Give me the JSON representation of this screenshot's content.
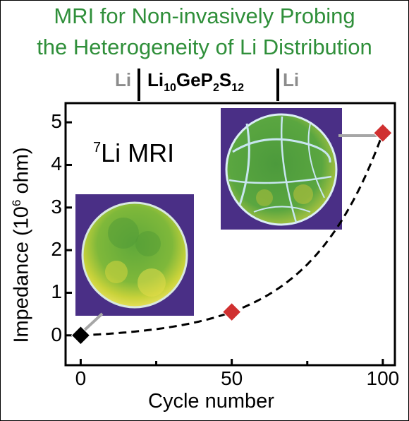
{
  "title_line1": "MRI for Non-invasively Probing",
  "title_line2": "the Heterogeneity of Li Distribution",
  "cell": {
    "left": "Li",
    "electrolyte_prefix": "Li",
    "sub1": "10",
    "mid": "GeP",
    "sub2": "2",
    "s": "S",
    "sub3": "12",
    "right": "Li"
  },
  "image_label_sup": "7",
  "image_label": "Li MRI",
  "colors": {
    "title": "#2f8f3a",
    "marker_first": "#000000",
    "marker_other": "#d03030",
    "mri_bg": "#4a2f86"
  },
  "chart_data": {
    "type": "line",
    "xlabel": "Cycle number",
    "ylabel_prefix": "Impedance (10",
    "ylabel_sup": "6",
    "ylabel_suffix": " ohm)",
    "x_ticks": [
      "0",
      "50",
      "100"
    ],
    "y_ticks": [
      "0",
      "1",
      "2",
      "3",
      "4",
      "5"
    ],
    "xlim": [
      -5,
      104
    ],
    "ylim": [
      -0.7,
      5.45
    ],
    "points": [
      {
        "x": 0,
        "y": 0
      },
      {
        "x": 50,
        "y": 0.55
      },
      {
        "x": 100,
        "y": 4.75
      }
    ],
    "fit_curve": "exponential, dashed",
    "grid": false,
    "insets": [
      "MRI image at 0 cycles",
      "MRI image at 100 cycles"
    ]
  }
}
